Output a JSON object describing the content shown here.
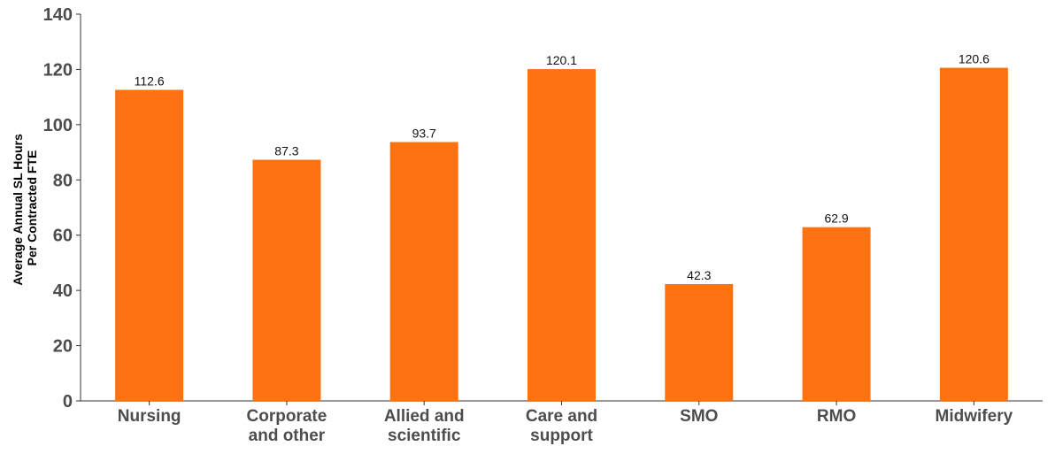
{
  "chart_data": {
    "type": "bar",
    "title": "",
    "xlabel": "",
    "ylabel_lines": [
      "Average Annual SL Hours",
      "Per Contracted FTE"
    ],
    "categories": [
      [
        "Nursing"
      ],
      [
        "Corporate",
        "and other"
      ],
      [
        "Allied and",
        "scientific"
      ],
      [
        "Care and",
        "support"
      ],
      [
        "SMO"
      ],
      [
        "RMO"
      ],
      [
        "Midwifery"
      ]
    ],
    "values": [
      112.6,
      87.3,
      93.7,
      120.1,
      42.3,
      62.9,
      120.6
    ],
    "value_labels": [
      "112.6",
      "87.3",
      "93.7",
      "120.1",
      "42.3",
      "62.9",
      "120.6"
    ],
    "ylim": [
      0,
      140
    ],
    "yticks": [
      "0",
      "20",
      "40",
      "60",
      "80",
      "100",
      "120",
      "140"
    ],
    "grid": false,
    "legend": "none",
    "bar_color": "#FF7212"
  }
}
